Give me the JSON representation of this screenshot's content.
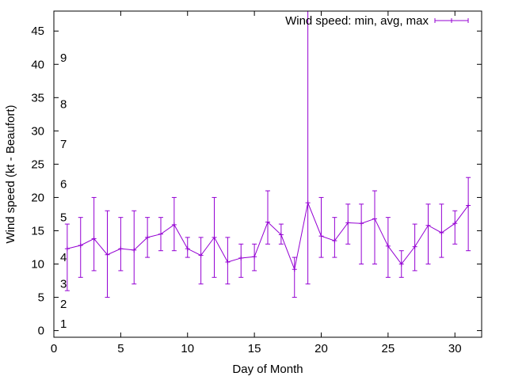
{
  "chart_data": {
    "type": "line",
    "xlabel": "Day of Month",
    "ylabel": "Wind speed (kt - Beaufort)",
    "xlim": [
      0,
      32
    ],
    "ylim": [
      -1,
      48
    ],
    "x_ticks": [
      0,
      5,
      10,
      15,
      20,
      25,
      30
    ],
    "y_ticks": [
      0,
      5,
      10,
      15,
      20,
      25,
      30,
      35,
      40,
      45
    ],
    "grid": false,
    "legend_position": "top-right",
    "beaufort_scale": [
      {
        "label": "1",
        "y": 1
      },
      {
        "label": "2",
        "y": 4
      },
      {
        "label": "3",
        "y": 7
      },
      {
        "label": "4",
        "y": 11
      },
      {
        "label": "5",
        "y": 17
      },
      {
        "label": "6",
        "y": 22
      },
      {
        "label": "7",
        "y": 28
      },
      {
        "label": "8",
        "y": 34
      },
      {
        "label": "9",
        "y": 41
      }
    ],
    "series": [
      {
        "name": "Wind speed: min, avg, max",
        "color": "#9400d3",
        "x": [
          1,
          2,
          3,
          4,
          5,
          6,
          7,
          8,
          9,
          10,
          11,
          12,
          13,
          14,
          15,
          16,
          17,
          18,
          19,
          20,
          21,
          22,
          23,
          24,
          25,
          26,
          27,
          28,
          29,
          30,
          31
        ],
        "avg": [
          12.3,
          12.8,
          13.8,
          11.4,
          12.3,
          12.1,
          14.0,
          14.5,
          15.9,
          12.3,
          11.3,
          14.0,
          10.3,
          10.9,
          11.1,
          16.3,
          14.4,
          9.2,
          19.2,
          14.2,
          13.5,
          16.2,
          16.1,
          16.8,
          12.7,
          10.0,
          12.6,
          15.8,
          14.7,
          16.1,
          18.8
        ],
        "min": [
          6,
          8,
          9,
          5,
          9,
          7,
          11,
          12,
          12,
          11,
          7,
          8,
          7,
          8,
          9,
          13,
          13,
          5,
          7,
          11,
          11,
          13,
          10,
          10,
          8,
          8,
          9,
          10,
          11,
          13,
          12
        ],
        "max": [
          16,
          17,
          20,
          18,
          17,
          18,
          17,
          17,
          20,
          14,
          14,
          20,
          14,
          13,
          13,
          21,
          16,
          11,
          48,
          20,
          17,
          19,
          19,
          21,
          17,
          12,
          16,
          19,
          19,
          18,
          23
        ]
      }
    ]
  }
}
